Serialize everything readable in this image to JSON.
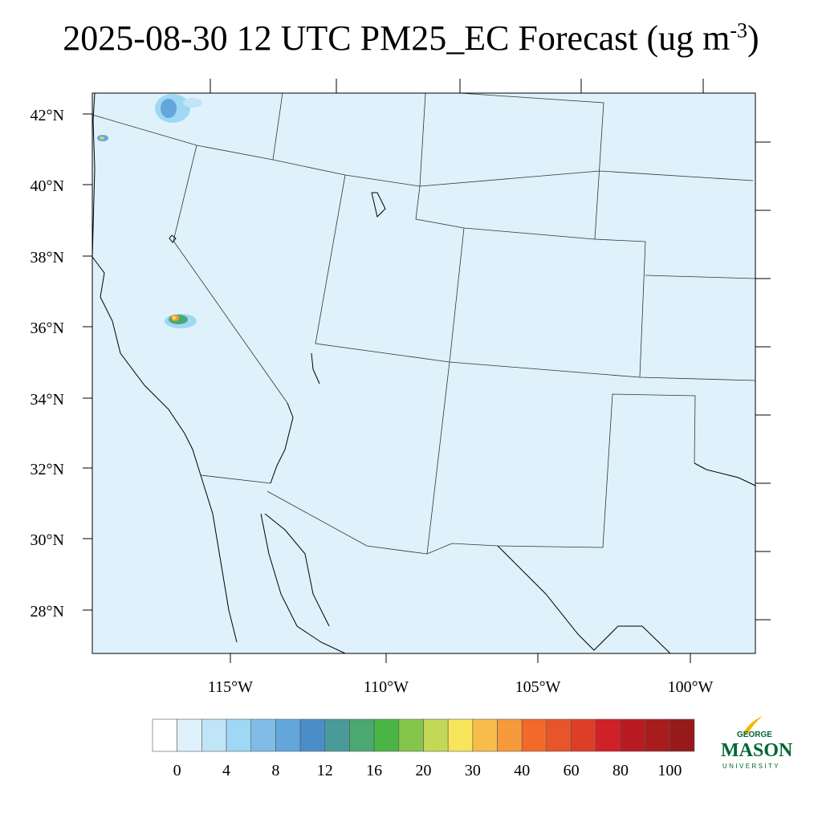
{
  "title": {
    "main": "2025-08-30 12 UTC PM25_EC Forecast (ug m",
    "superscript": "-3",
    "close": ")"
  },
  "map": {
    "background_color": "#dff1fb",
    "lat_labels": [
      "42°N",
      "40°N",
      "38°N",
      "36°N",
      "34°N",
      "32°N",
      "30°N",
      "28°N"
    ],
    "lon_labels": [
      "115°W",
      "110°W",
      "105°W",
      "100°W"
    ]
  },
  "colorbar": {
    "colors": [
      "#ffffff",
      "#dff1fb",
      "#bfe5f7",
      "#9fd8f5",
      "#80bde6",
      "#63a6dc",
      "#4a8ec9",
      "#4a9a9a",
      "#4aa870",
      "#4ab545",
      "#85c54b",
      "#c4d858",
      "#f7e65b",
      "#f7bd4b",
      "#f79a3b",
      "#f2692a",
      "#e9552a",
      "#de3e28",
      "#d22028",
      "#b81c22",
      "#a81c1e",
      "#961a1a"
    ],
    "labels": [
      "0",
      "4",
      "8",
      "12",
      "16",
      "20",
      "30",
      "40",
      "60",
      "80",
      "100"
    ]
  },
  "logo": {
    "line1": "GEORGE",
    "line2": "MASON",
    "line3": "UNIVERSITY",
    "color": "#006633",
    "accent": "#f2b705"
  }
}
